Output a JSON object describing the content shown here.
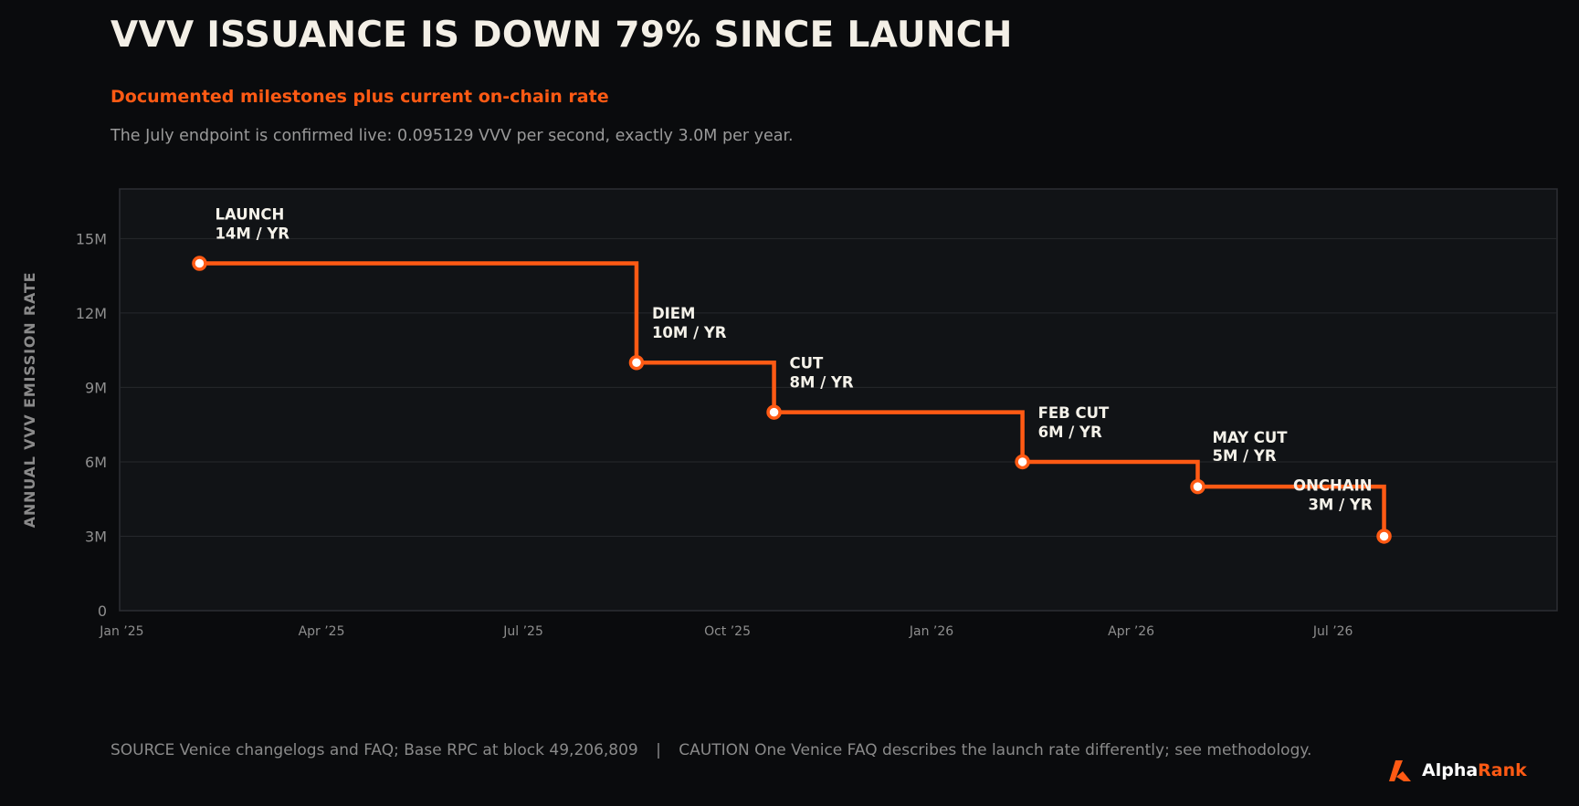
{
  "header": {
    "title": "VVV ISSUANCE IS DOWN 79% SINCE LAUNCH",
    "subtitle": "Documented milestones plus current on-chain rate",
    "description": "The July endpoint is confirmed live: 0.095129 VVV per second, exactly 3.0M per year."
  },
  "footer": {
    "source_label": "SOURCE",
    "source_text": "Venice changelogs and FAQ; Base RPC at block 49,206,809",
    "separator": "|",
    "caution_label": "CAUTION",
    "caution_text": "One Venice FAQ describes the launch rate differently; see methodology."
  },
  "brand": {
    "word1": "Alpha",
    "word2": "Rank",
    "icon": "alpharank-logo-icon"
  },
  "colors": {
    "background": "#0a0b0d",
    "plot_bg": "#111316",
    "accent": "#ff5a14",
    "grid": "#26282c",
    "text_primary": "#f3efe6",
    "text_muted": "#9a9a9a"
  },
  "chart_data": {
    "type": "line",
    "step": true,
    "title": "VVV ISSUANCE IS DOWN 79% SINCE LAUNCH",
    "ylabel": "ANNUAL VVV EMISSION RATE",
    "xlabel": "",
    "ylim": [
      0,
      17
    ],
    "xlim": [
      "2024-12-31",
      "2026-10-10"
    ],
    "yticks": [
      0,
      3,
      6,
      9,
      12,
      15
    ],
    "ytick_labels": [
      "0",
      "3M",
      "6M",
      "9M",
      "12M",
      "15M"
    ],
    "xticks": [
      "2025-01-01",
      "2025-04-01",
      "2025-07-01",
      "2025-10-01",
      "2026-01-01",
      "2026-04-01",
      "2026-07-01"
    ],
    "xtick_labels": [
      "Jan ’25",
      "Apr ’25",
      "Jul ’25",
      "Oct ’25",
      "Jan ’26",
      "Apr ’26",
      "Jul ’26"
    ],
    "grid": true,
    "points": [
      {
        "date": "2025-02-05",
        "value": 14,
        "label": "LAUNCH",
        "value_label": "14M / YR"
      },
      {
        "date": "2025-08-21",
        "value": 10,
        "label": "DIEM",
        "value_label": "10M / YR"
      },
      {
        "date": "2025-10-22",
        "value": 8,
        "label": "CUT",
        "value_label": "8M / YR"
      },
      {
        "date": "2026-02-11",
        "value": 6,
        "label": "FEB CUT",
        "value_label": "6M / YR"
      },
      {
        "date": "2026-05-01",
        "value": 5,
        "label": "MAY CUT",
        "value_label": "5M / YR"
      },
      {
        "date": "2026-07-24",
        "value": 3,
        "label": "ONCHAIN",
        "value_label": "3M / YR"
      }
    ]
  }
}
